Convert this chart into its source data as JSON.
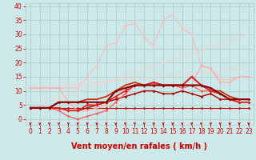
{
  "title": "",
  "xlabel": "Vent moyen/en rafales ( km/h )",
  "ylabel": "",
  "xlim": [
    -0.5,
    23.5
  ],
  "ylim": [
    -2,
    41
  ],
  "yticks": [
    0,
    5,
    10,
    15,
    20,
    25,
    30,
    35,
    40
  ],
  "xticks": [
    0,
    1,
    2,
    3,
    4,
    5,
    6,
    7,
    8,
    9,
    10,
    11,
    12,
    13,
    14,
    15,
    16,
    17,
    18,
    19,
    20,
    21,
    22,
    23
  ],
  "bg_color": "#cce8e8",
  "grid_color": "#aacccc",
  "lines": [
    {
      "x": [
        0,
        1,
        2,
        3,
        4,
        5,
        6,
        7,
        8,
        9,
        10,
        11,
        12,
        13,
        14,
        15,
        16,
        17,
        18,
        19,
        20,
        21,
        22,
        23
      ],
      "y": [
        4,
        4,
        4,
        4,
        4,
        4,
        4,
        4,
        4,
        4,
        4,
        4,
        4,
        4,
        4,
        4,
        4,
        4,
        4,
        4,
        4,
        4,
        4,
        4
      ],
      "color": "#cc0000",
      "lw": 0.8,
      "marker": "D",
      "ms": 1.8,
      "alpha": 1.0,
      "zorder": 3
    },
    {
      "x": [
        0,
        1,
        2,
        3,
        4,
        5,
        6,
        7,
        8,
        9,
        10,
        11,
        12,
        13,
        14,
        15,
        16,
        17,
        18,
        19,
        20,
        21,
        22,
        23
      ],
      "y": [
        4,
        4,
        4,
        4,
        3,
        3,
        4,
        5,
        6,
        7,
        8,
        9,
        10,
        10,
        9,
        9,
        10,
        9,
        8,
        9,
        7,
        7,
        6,
        6
      ],
      "color": "#aa0000",
      "lw": 1.0,
      "marker": "D",
      "ms": 1.8,
      "alpha": 1.0,
      "zorder": 4
    },
    {
      "x": [
        0,
        1,
        2,
        3,
        4,
        5,
        6,
        7,
        8,
        9,
        10,
        11,
        12,
        13,
        14,
        15,
        16,
        17,
        18,
        19,
        20,
        21,
        22,
        23
      ],
      "y": [
        4,
        4,
        4,
        4,
        3,
        3,
        5,
        5,
        6,
        8,
        10,
        12,
        12,
        13,
        12,
        12,
        12,
        15,
        12,
        10,
        9,
        7,
        6,
        6
      ],
      "color": "#dd2222",
      "lw": 1.2,
      "marker": "D",
      "ms": 2.0,
      "alpha": 1.0,
      "zorder": 5
    },
    {
      "x": [
        0,
        1,
        2,
        3,
        4,
        5,
        6,
        7,
        8,
        9,
        10,
        11,
        12,
        13,
        14,
        15,
        16,
        17,
        18,
        19,
        20,
        21,
        22,
        23
      ],
      "y": [
        4,
        4,
        4,
        3,
        1,
        0,
        1,
        2,
        3,
        6,
        9,
        12,
        12,
        13,
        12,
        12,
        11,
        12,
        10,
        10,
        9,
        7,
        6,
        6
      ],
      "color": "#ff5555",
      "lw": 1.0,
      "marker": "D",
      "ms": 1.8,
      "alpha": 0.9,
      "zorder": 4
    },
    {
      "x": [
        0,
        1,
        2,
        3,
        4,
        5,
        6,
        7,
        8,
        9,
        10,
        11,
        12,
        13,
        14,
        15,
        16,
        17,
        18,
        19,
        20,
        21,
        22,
        23
      ],
      "y": [
        11,
        11,
        11,
        11,
        6,
        3,
        3,
        4,
        5,
        10,
        10,
        12,
        12,
        12,
        12,
        12,
        12,
        12,
        19,
        18,
        13,
        13,
        15,
        15
      ],
      "color": "#ffaaaa",
      "lw": 0.9,
      "marker": "D",
      "ms": 1.8,
      "alpha": 0.9,
      "zorder": 3
    },
    {
      "x": [
        0,
        1,
        2,
        3,
        4,
        5,
        6,
        7,
        8,
        9,
        10,
        11,
        12,
        13,
        14,
        15,
        16,
        17,
        18,
        19,
        20,
        21,
        22,
        23
      ],
      "y": [
        4,
        4,
        4,
        6,
        6,
        6,
        6,
        6,
        6,
        10,
        11,
        12,
        12,
        12,
        12,
        12,
        12,
        12,
        12,
        11,
        9,
        7,
        7,
        7
      ],
      "color": "#880000",
      "lw": 1.5,
      "marker": "D",
      "ms": 1.8,
      "alpha": 1.0,
      "zorder": 5
    },
    {
      "x": [
        0,
        1,
        2,
        3,
        4,
        5,
        6,
        7,
        8,
        9,
        10,
        11,
        12,
        13,
        14,
        15,
        16,
        17,
        18,
        19,
        20,
        21,
        22,
        23
      ],
      "y": [
        4,
        4,
        4,
        6,
        6,
        6,
        7,
        7,
        8,
        10,
        12,
        13,
        12,
        13,
        12,
        12,
        12,
        15,
        12,
        10,
        10,
        8,
        7,
        7
      ],
      "color": "#cc2200",
      "lw": 1.2,
      "marker": null,
      "ms": 0,
      "alpha": 1.0,
      "zorder": 4
    },
    {
      "x": [
        0,
        1,
        2,
        3,
        4,
        5,
        6,
        7,
        8,
        9,
        10,
        11,
        12,
        13,
        14,
        15,
        16,
        17,
        18,
        19,
        20,
        21,
        22,
        23
      ],
      "y": [
        11,
        11,
        11,
        11,
        11,
        11,
        15,
        19,
        26,
        27,
        33,
        34,
        29,
        26,
        35,
        37,
        32,
        30,
        19,
        18,
        14,
        14,
        15,
        15
      ],
      "color": "#ffbbbb",
      "lw": 0.9,
      "marker": "D",
      "ms": 1.8,
      "alpha": 0.85,
      "zorder": 2
    },
    {
      "x": [
        0,
        23
      ],
      "y": [
        4,
        30
      ],
      "color": "#ffcccc",
      "lw": 1.0,
      "marker": null,
      "ms": 0,
      "alpha": 0.7,
      "zorder": 2
    },
    {
      "x": [
        0,
        23
      ],
      "y": [
        11,
        18
      ],
      "color": "#ffcccc",
      "lw": 1.0,
      "marker": null,
      "ms": 0,
      "alpha": 0.7,
      "zorder": 2
    }
  ],
  "arrow_color": "#cc0000",
  "xlabel_fontsize": 7,
  "tick_fontsize": 5.5,
  "tick_color": "#cc0000"
}
